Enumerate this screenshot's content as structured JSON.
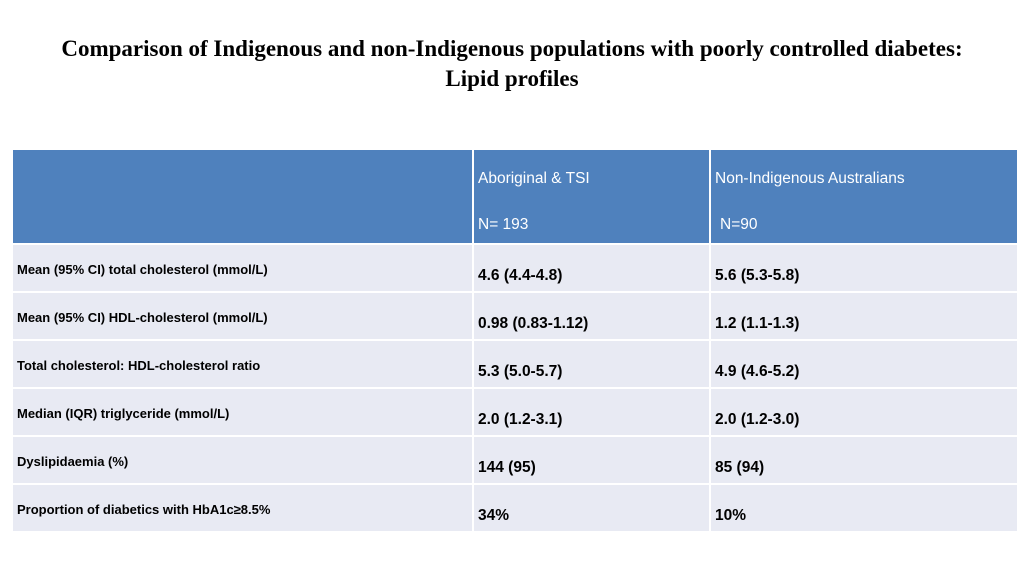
{
  "title": "Comparison of Indigenous and non-Indigenous populations with poorly controlled diabetes:  Lipid profiles",
  "table": {
    "header": {
      "col_a_line1": "Aboriginal & TSI",
      "col_a_line2": "N= 193",
      "col_b_line1": "Non-Indigenous Australians",
      "col_b_line2": "N=90"
    },
    "rows": [
      {
        "label": "Mean (95% CI) total cholesterol (mmol/L)",
        "a": "4.6 (4.4-4.8)",
        "b": "5.6 (5.3-5.8)"
      },
      {
        "label": "Mean (95% CI) HDL-cholesterol (mmol/L)",
        "a": "0.98 (0.83-1.12)",
        "b": "1.2 (1.1-1.3)"
      },
      {
        "label": "Total cholesterol: HDL-cholesterol ratio",
        "a": "5.3 (5.0-5.7)",
        "b": "4.9 (4.6-5.2)"
      },
      {
        "label": "Median (IQR) triglyceride (mmol/L)",
        "a": "2.0 (1.2-3.1)",
        "b": "2.0 (1.2-3.0)"
      },
      {
        "label": "Dyslipidaemia (%)",
        "a": "144 (95)",
        "b": "85 (94)"
      },
      {
        "label": "Proportion of diabetics with HbA1c≥8.5%",
        "a": "34%",
        "b": "10%"
      }
    ]
  },
  "colors": {
    "header_bg": "#4f81bd",
    "row_bg": "#e8eaf3"
  }
}
